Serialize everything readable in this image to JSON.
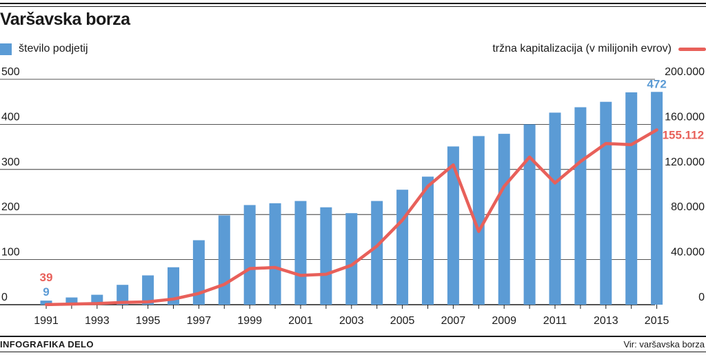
{
  "title": "Varšavska borza",
  "colors": {
    "bars": "#5b9bd5",
    "line": "#e8605a",
    "text": "#1a1a1a",
    "grid": "#1a1a1a"
  },
  "legend": {
    "bars_label": "število podjetij",
    "line_label": "tržna kapitalizacija (v milijonih evrov)"
  },
  "footer": {
    "source": "Vir: varšavska borza",
    "credit": "INFOGRAFIKA DELO"
  },
  "chart_data": {
    "type": "bar",
    "x": [
      1991,
      1992,
      1993,
      1994,
      1995,
      1996,
      1997,
      1998,
      1999,
      2000,
      2001,
      2002,
      2003,
      2004,
      2005,
      2006,
      2007,
      2008,
      2009,
      2010,
      2011,
      2012,
      2013,
      2014,
      2015
    ],
    "series": [
      {
        "name": "število podjetij",
        "type": "bar",
        "axis": "left",
        "values": [
          9,
          16,
          22,
          44,
          65,
          83,
          143,
          198,
          221,
          225,
          230,
          216,
          203,
          230,
          255,
          284,
          351,
          374,
          379,
          400,
          426,
          438,
          450,
          471,
          472
        ]
      },
      {
        "name": "tržna kapitalizacija (v milijonih evrov)",
        "type": "line",
        "axis": "right",
        "values": [
          39,
          500,
          1000,
          2000,
          2500,
          5000,
          10000,
          18000,
          32000,
          33000,
          26000,
          27000,
          35000,
          52000,
          75000,
          105000,
          124000,
          65000,
          105000,
          131000,
          108000,
          127000,
          143000,
          142000,
          155112
        ]
      }
    ],
    "x_tick_labels": [
      "1991",
      "1993",
      "1995",
      "1997",
      "1999",
      "2001",
      "2003",
      "2005",
      "2007",
      "2009",
      "2011",
      "2013",
      "2015"
    ],
    "y_left": {
      "ticks": [
        "0",
        "100",
        "200",
        "300",
        "400",
        "500"
      ],
      "lim": [
        0,
        500
      ]
    },
    "y_right": {
      "ticks": [
        "0",
        "40.000",
        "80.000",
        "120.000",
        "160.000",
        "200.000"
      ],
      "lim": [
        0,
        200000
      ]
    },
    "annotations": {
      "first_bar": "9",
      "last_bar": "472",
      "first_line": "39",
      "last_line": "155.112"
    },
    "grid": true
  }
}
